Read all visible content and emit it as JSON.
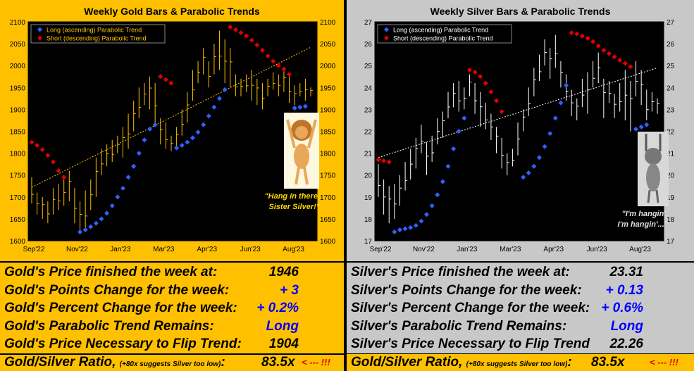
{
  "colors": {
    "gold_bg": "#ffc000",
    "silver_bg": "#c8c8c8",
    "long_dot": "#3060ff",
    "short_dot": "#e00000",
    "gold_bar": "#ffc000",
    "silver_bar": "#ffffff",
    "trend_gold": "#ffc000",
    "trend_silver": "#ffffff",
    "value_blue": "#0000ff",
    "warn_red": "#e00000"
  },
  "gold": {
    "caption_line1": "\"Hang in there,",
    "caption_line2": "Sister Silver!\"",
    "stats": [
      {
        "label": "Gold's Price finished the week at:",
        "value": "1946",
        "color": "#000000"
      },
      {
        "label": "Gold's Points Change for the week:",
        "value": "+ 3",
        "color": "#0000ff"
      },
      {
        "label": "Gold's Percent Change for the week:",
        "value": "+ 0.2%",
        "color": "#0000ff"
      },
      {
        "label": "Gold's Parabolic Trend Remains:",
        "value": "Long",
        "color": "#0000ff"
      },
      {
        "label": "Gold's Price Necessary to Flip Trend:",
        "value": "1904",
        "color": "#000000"
      }
    ],
    "ratio_label": "Gold/Silver Ratio,",
    "ratio_note": "(+80x suggests Silver too low)",
    "ratio_colon": ":",
    "ratio_value": "83.5x",
    "ratio_warn": "< --- !!!"
  },
  "silver": {
    "caption_line1": "\"I'm hangin',",
    "caption_line2": "I'm hangin'...\"",
    "stats": [
      {
        "label": "Silver's Price finished the week at:",
        "value": "23.31",
        "color": "#000000"
      },
      {
        "label": "Silver's Points Change for the week:",
        "value": "+ 0.13",
        "color": "#0000ff"
      },
      {
        "label": "Silver's Percent Change for the week:",
        "value": "+ 0.6%",
        "color": "#0000ff"
      },
      {
        "label": "Silver's Parabolic Trend Remains:",
        "value": "Long",
        "color": "#0000ff"
      },
      {
        "label": "Silver's Price Necessary to Flip Trend",
        "value": "22.26",
        "color": "#000000"
      }
    ],
    "ratio_label": "Gold/Silver Ratio,",
    "ratio_note": "(+80x suggests Silver too low)",
    "ratio_colon": ":",
    "ratio_value": "83.5x",
    "ratio_warn": "< --- !!!"
  },
  "chart_data": [
    {
      "type": "ohlc",
      "title": "Weekly Gold Bars & Parabolic Trends",
      "legend": [
        "Long (ascending) Parabolic Trend",
        "Short (descending) Parabolic Trend"
      ],
      "legend_position": "top-left",
      "x_tick_labels": [
        "Sep'22",
        "Nov'22",
        "Jan'23",
        "Mar'23",
        "Apr'23",
        "Jun'23",
        "Aug'23"
      ],
      "y_ticks": [
        1600,
        1650,
        1700,
        1750,
        1800,
        1850,
        1900,
        1950,
        2000,
        2050,
        2100
      ],
      "ylim": [
        1600,
        2100
      ],
      "weeks": 53,
      "bars": [
        [
          1745,
          1685
        ],
        [
          1710,
          1660
        ],
        [
          1700,
          1650
        ],
        [
          1690,
          1640
        ],
        [
          1720,
          1660
        ],
        [
          1730,
          1670
        ],
        [
          1740,
          1680
        ],
        [
          1760,
          1690
        ],
        [
          1720,
          1640
        ],
        [
          1690,
          1620
        ],
        [
          1715,
          1625
        ],
        [
          1740,
          1670
        ],
        [
          1790,
          1700
        ],
        [
          1810,
          1750
        ],
        [
          1820,
          1770
        ],
        [
          1830,
          1780
        ],
        [
          1840,
          1800
        ],
        [
          1860,
          1790
        ],
        [
          1890,
          1810
        ],
        [
          1920,
          1850
        ],
        [
          1950,
          1880
        ],
        [
          1960,
          1910
        ],
        [
          1975,
          1900
        ],
        [
          1960,
          1870
        ],
        [
          1880,
          1820
        ],
        [
          1870,
          1810
        ],
        [
          1840,
          1805
        ],
        [
          1860,
          1810
        ],
        [
          1900,
          1840
        ],
        [
          1940,
          1870
        ],
        [
          1990,
          1920
        ],
        [
          2010,
          1960
        ],
        [
          2040,
          1980
        ],
        [
          2010,
          1950
        ],
        [
          2050,
          1980
        ],
        [
          2080,
          1990
        ],
        [
          2060,
          1960
        ],
        [
          2040,
          1950
        ],
        [
          1980,
          1930
        ],
        [
          1970,
          1930
        ],
        [
          1980,
          1940
        ],
        [
          1990,
          1920
        ],
        [
          1970,
          1910
        ],
        [
          1960,
          1900
        ],
        [
          1970,
          1930
        ],
        [
          1985,
          1945
        ],
        [
          1980,
          1930
        ],
        [
          1990,
          1940
        ],
        [
          1975,
          1915
        ],
        [
          1955,
          1910
        ],
        [
          1960,
          1930
        ],
        [
          1970,
          1920
        ],
        [
          1950,
          1930
        ]
      ],
      "long_dots": [
        [
          9,
          1620
        ],
        [
          10,
          1625
        ],
        [
          11,
          1632
        ],
        [
          12,
          1640
        ],
        [
          13,
          1650
        ],
        [
          14,
          1663
        ],
        [
          15,
          1680
        ],
        [
          16,
          1700
        ],
        [
          17,
          1720
        ],
        [
          18,
          1745
        ],
        [
          19,
          1770
        ],
        [
          20,
          1800
        ],
        [
          21,
          1830
        ],
        [
          22,
          1855
        ],
        [
          23,
          1865
        ],
        [
          27,
          1812
        ],
        [
          28,
          1818
        ],
        [
          29,
          1825
        ],
        [
          30,
          1835
        ],
        [
          31,
          1848
        ],
        [
          32,
          1865
        ],
        [
          33,
          1885
        ],
        [
          34,
          1905
        ],
        [
          35,
          1925
        ],
        [
          36,
          1945
        ],
        [
          49,
          1903
        ],
        [
          50,
          1905
        ],
        [
          51,
          1907
        ]
      ],
      "short_dots": [
        [
          0,
          1825
        ],
        [
          1,
          1818
        ],
        [
          2,
          1808
        ],
        [
          3,
          1795
        ],
        [
          4,
          1780
        ],
        [
          5,
          1760
        ],
        [
          6,
          1745
        ],
        [
          24,
          1975
        ],
        [
          25,
          1968
        ],
        [
          26,
          1960
        ],
        [
          37,
          2088
        ],
        [
          38,
          2082
        ],
        [
          39,
          2075
        ],
        [
          40,
          2068
        ],
        [
          41,
          2058
        ],
        [
          42,
          2047
        ],
        [
          43,
          2035
        ],
        [
          44,
          2022
        ],
        [
          45,
          2010
        ],
        [
          46,
          2000
        ],
        [
          47,
          1992
        ],
        [
          48,
          1980
        ]
      ],
      "trendline": [
        [
          0,
          1722
        ],
        [
          52,
          2042
        ]
      ]
    },
    {
      "type": "ohlc",
      "title": "Weekly Silver Bars & Parabolic Trends",
      "legend": [
        "Long (ascending) Parabolic Trend",
        "Short (descending) Parabolic Trend"
      ],
      "legend_position": "top-left",
      "x_tick_labels": [
        "Sep'22",
        "Nov'22",
        "Jan'23",
        "Mar'23",
        "Apr'23",
        "Jun'23",
        "Aug'23"
      ],
      "y_ticks": [
        17,
        18,
        19,
        20,
        21,
        22,
        23,
        24,
        25,
        26,
        27
      ],
      "ylim": [
        17,
        27
      ],
      "weeks": 53,
      "bars": [
        [
          20.5,
          19.0
        ],
        [
          19.8,
          18.2
        ],
        [
          19.5,
          17.8
        ],
        [
          19.6,
          18.0
        ],
        [
          20.0,
          18.6
        ],
        [
          20.6,
          19.3
        ],
        [
          21.2,
          19.8
        ],
        [
          21.7,
          20.3
        ],
        [
          22.3,
          21.0
        ],
        [
          21.5,
          20.0
        ],
        [
          21.8,
          20.6
        ],
        [
          22.6,
          21.4
        ],
        [
          22.9,
          21.7
        ],
        [
          23.8,
          22.6
        ],
        [
          24.2,
          23.1
        ],
        [
          24.3,
          22.9
        ],
        [
          24.0,
          23.0
        ],
        [
          24.6,
          23.6
        ],
        [
          24.2,
          22.8
        ],
        [
          23.8,
          22.2
        ],
        [
          23.3,
          22.1
        ],
        [
          22.8,
          21.6
        ],
        [
          22.2,
          21.0
        ],
        [
          21.7,
          20.3
        ],
        [
          21.0,
          20.0
        ],
        [
          21.2,
          20.4
        ],
        [
          22.4,
          20.9
        ],
        [
          23.0,
          22.0
        ],
        [
          24.0,
          22.7
        ],
        [
          24.9,
          23.6
        ],
        [
          25.5,
          24.3
        ],
        [
          26.2,
          25.0
        ],
        [
          25.8,
          24.4
        ],
        [
          26.4,
          24.9
        ],
        [
          25.2,
          24.0
        ],
        [
          24.6,
          23.4
        ],
        [
          23.9,
          22.7
        ],
        [
          23.5,
          22.5
        ],
        [
          24.4,
          23.1
        ],
        [
          24.7,
          22.8
        ],
        [
          25.2,
          24.0
        ],
        [
          25.6,
          24.2
        ],
        [
          24.4,
          22.6
        ],
        [
          24.3,
          23.3
        ],
        [
          23.7,
          22.6
        ],
        [
          24.2,
          22.9
        ],
        [
          24.8,
          22.5
        ],
        [
          24.3,
          22.0
        ],
        [
          25.2,
          23.6
        ],
        [
          24.8,
          23.2
        ],
        [
          23.9,
          22.5
        ],
        [
          23.8,
          22.9
        ],
        [
          23.5,
          22.8
        ]
      ],
      "long_dots": [
        [
          3,
          17.4
        ],
        [
          4,
          17.5
        ],
        [
          5,
          17.55
        ],
        [
          6,
          17.6
        ],
        [
          7,
          17.7
        ],
        [
          8,
          17.9
        ],
        [
          9,
          18.2
        ],
        [
          10,
          18.6
        ],
        [
          11,
          19.1
        ],
        [
          12,
          19.7
        ],
        [
          13,
          20.4
        ],
        [
          14,
          21.2
        ],
        [
          15,
          22.0
        ],
        [
          16,
          22.6
        ],
        [
          27,
          19.9
        ],
        [
          28,
          20.1
        ],
        [
          29,
          20.4
        ],
        [
          30,
          20.8
        ],
        [
          31,
          21.3
        ],
        [
          32,
          21.9
        ],
        [
          33,
          22.6
        ],
        [
          34,
          23.3
        ],
        [
          35,
          24.1
        ],
        [
          48,
          22.1
        ],
        [
          49,
          22.2
        ],
        [
          50,
          22.3
        ]
      ],
      "short_dots": [
        [
          0,
          20.7
        ],
        [
          1,
          20.65
        ],
        [
          2,
          20.6
        ],
        [
          17,
          24.8
        ],
        [
          18,
          24.7
        ],
        [
          19,
          24.5
        ],
        [
          20,
          24.2
        ],
        [
          21,
          23.8
        ],
        [
          22,
          23.4
        ],
        [
          23,
          22.9
        ],
        [
          36,
          26.5
        ],
        [
          37,
          26.45
        ],
        [
          38,
          26.35
        ],
        [
          39,
          26.25
        ],
        [
          40,
          26.1
        ],
        [
          41,
          25.9
        ],
        [
          42,
          25.7
        ],
        [
          43,
          25.55
        ],
        [
          44,
          25.4
        ],
        [
          45,
          25.25
        ],
        [
          46,
          25.1
        ],
        [
          47,
          24.95
        ]
      ],
      "trendline": [
        [
          0,
          20.8
        ],
        [
          52,
          24.9
        ]
      ]
    }
  ]
}
